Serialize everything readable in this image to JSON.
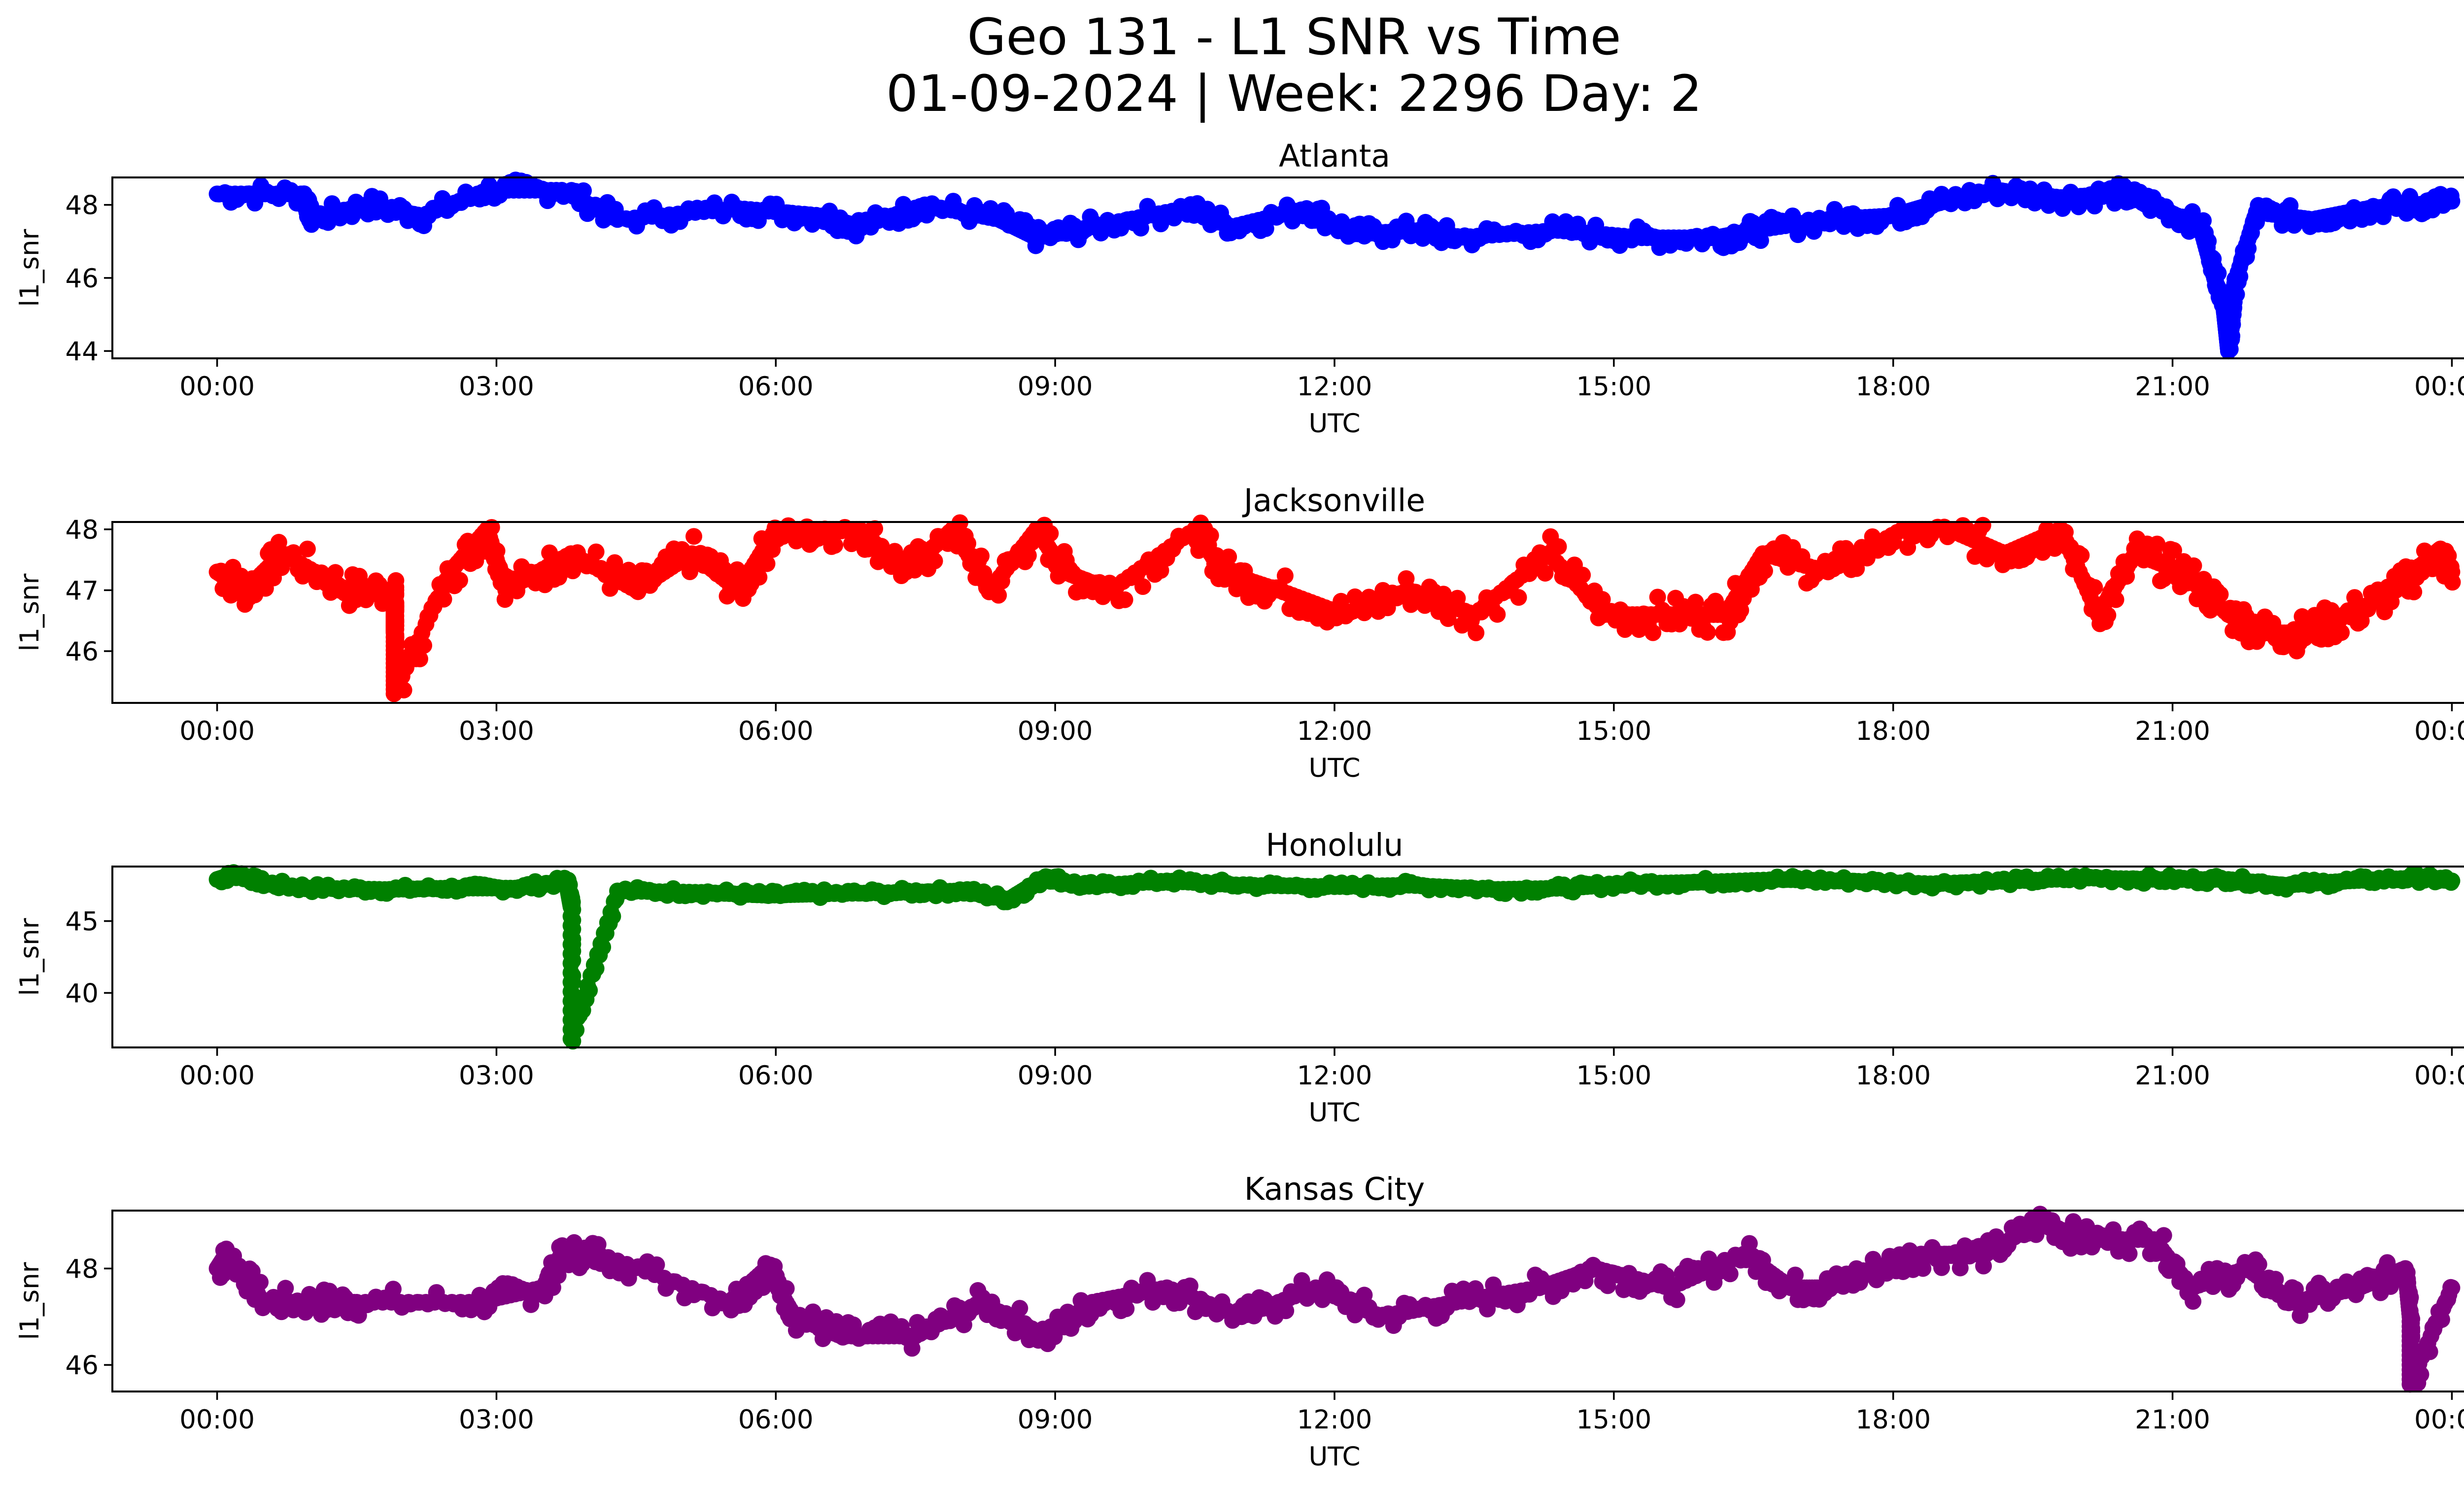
{
  "figure": {
    "title_line1": "Geo 131 - L1 SNR vs Time",
    "title_line2": "01-09-2024 | Week: 2296 Day: 2"
  },
  "chart_data": [
    {
      "type": "scatter",
      "title": "Atlanta",
      "xlabel": "UTC",
      "ylabel": "l1_snr",
      "color": "#0000ff",
      "xlim": [
        -1.125,
        25.125
      ],
      "ylim": [
        43.8,
        48.75
      ],
      "xticks": [
        0,
        3,
        6,
        9,
        12,
        15,
        18,
        21,
        24
      ],
      "xtick_labels": [
        "00:00",
        "03:00",
        "06:00",
        "09:00",
        "12:00",
        "15:00",
        "18:00",
        "21:00",
        "00:00"
      ],
      "yticks": [
        44,
        46,
        48
      ],
      "ytick_labels": [
        "44",
        "46",
        "48"
      ],
      "series": [
        {
          "values": [
            [
              0,
              48.3
            ],
            [
              0.9,
              48.3
            ],
            [
              1.0,
              47.6
            ],
            [
              1.6,
              48.0
            ],
            [
              2.2,
              47.7
            ],
            [
              2.9,
              48.4
            ],
            [
              3.7,
              48.4
            ],
            [
              4.3,
              47.6
            ],
            [
              5.6,
              47.9
            ],
            [
              6.5,
              47.7
            ],
            [
              6.9,
              47.4
            ],
            [
              7.6,
              48.0
            ],
            [
              8.4,
              47.6
            ],
            [
              8.8,
              47.1
            ],
            [
              9.4,
              47.4
            ],
            [
              10.4,
              47.9
            ],
            [
              10.9,
              47.4
            ],
            [
              11.7,
              47.9
            ],
            [
              12.2,
              47.2
            ],
            [
              12.9,
              47.3
            ],
            [
              13.3,
              47.1
            ],
            [
              14.4,
              47.3
            ],
            [
              15.3,
              47.1
            ],
            [
              16.1,
              47.1
            ],
            [
              16.5,
              47.3
            ],
            [
              17.3,
              47.6
            ],
            [
              18.0,
              47.7
            ],
            [
              18.4,
              48.0
            ],
            [
              19.1,
              48.4
            ],
            [
              19.8,
              48.2
            ],
            [
              20.4,
              48.3
            ],
            [
              20.8,
              48.0
            ],
            [
              21.3,
              47.4
            ],
            [
              21.45,
              46.0
            ],
            [
              21.55,
              45.2
            ],
            [
              21.6,
              44.0
            ],
            [
              21.65,
              45.7
            ],
            [
              21.9,
              47.8
            ],
            [
              22.5,
              47.6
            ],
            [
              23.1,
              47.9
            ],
            [
              23.6,
              48.0
            ],
            [
              24.0,
              48.1
            ]
          ]
        }
      ]
    },
    {
      "type": "scatter",
      "title": "Jacksonville",
      "xlabel": "UTC",
      "ylabel": "l1_snr",
      "color": "#ff0000",
      "xlim": [
        -1.125,
        25.125
      ],
      "ylim": [
        45.15,
        48.12
      ],
      "xticks": [
        0,
        3,
        6,
        9,
        12,
        15,
        18,
        21,
        24
      ],
      "xtick_labels": [
        "00:00",
        "03:00",
        "06:00",
        "09:00",
        "12:00",
        "15:00",
        "18:00",
        "21:00",
        "00:00"
      ],
      "yticks": [
        46,
        47,
        48
      ],
      "ytick_labels": [
        "46",
        "47",
        "48"
      ],
      "series": [
        {
          "values": [
            [
              0,
              47.3
            ],
            [
              0.3,
              47.0
            ],
            [
              0.7,
              47.6
            ],
            [
              1.4,
              47.0
            ],
            [
              1.9,
              47.0
            ],
            [
              1.9,
              46.6
            ],
            [
              1.9,
              46.3
            ],
            [
              1.9,
              45.3
            ],
            [
              2.5,
              47.3
            ],
            [
              2.9,
              48.0
            ],
            [
              3.1,
              47.0
            ],
            [
              3.8,
              47.6
            ],
            [
              4.5,
              47.0
            ],
            [
              5.1,
              47.6
            ],
            [
              5.6,
              47.0
            ],
            [
              6.0,
              48.0
            ],
            [
              6.4,
              48.0
            ],
            [
              6.9,
              48.0
            ],
            [
              7.4,
              47.3
            ],
            [
              7.9,
              48.0
            ],
            [
              8.3,
              47.0
            ],
            [
              8.8,
              48.0
            ],
            [
              9.1,
              47.3
            ],
            [
              9.6,
              47.0
            ],
            [
              10.5,
              48.0
            ],
            [
              10.8,
              47.3
            ],
            [
              11.4,
              47.0
            ],
            [
              12.1,
              46.6
            ],
            [
              12.8,
              47.0
            ],
            [
              13.5,
              46.6
            ],
            [
              14.3,
              47.6
            ],
            [
              14.9,
              46.6
            ],
            [
              15.6,
              46.6
            ],
            [
              16.2,
              46.6
            ],
            [
              16.6,
              47.6
            ],
            [
              17.3,
              47.3
            ],
            [
              18.1,
              48.0
            ],
            [
              18.6,
              48.0
            ],
            [
              19.2,
              47.6
            ],
            [
              19.8,
              48.0
            ],
            [
              20.2,
              46.6
            ],
            [
              20.6,
              47.6
            ],
            [
              21.1,
              47.3
            ],
            [
              21.6,
              46.6
            ],
            [
              22.0,
              46.3
            ],
            [
              22.4,
              46.3
            ],
            [
              22.9,
              46.6
            ],
            [
              23.4,
              47.0
            ],
            [
              23.8,
              47.6
            ],
            [
              24.0,
              47.3
            ]
          ]
        }
      ]
    },
    {
      "type": "scatter",
      "title": "Honolulu",
      "xlabel": "UTC",
      "ylabel": "l1_snr",
      "color": "#008000",
      "xlim": [
        -1.125,
        25.125
      ],
      "ylim": [
        36.2,
        48.8
      ],
      "xticks": [
        0,
        3,
        6,
        9,
        12,
        15,
        18,
        21,
        24
      ],
      "xtick_labels": [
        "00:00",
        "03:00",
        "06:00",
        "09:00",
        "12:00",
        "15:00",
        "18:00",
        "21:00",
        "00:00"
      ],
      "yticks": [
        40,
        45
      ],
      "ytick_labels": [
        "40",
        "45"
      ],
      "series": [
        {
          "values": [
            [
              0,
              47.9
            ],
            [
              0.2,
              48.3
            ],
            [
              0.5,
              47.6
            ],
            [
              1.0,
              47.3
            ],
            [
              1.8,
              47.2
            ],
            [
              2.5,
              47.3
            ],
            [
              3.2,
              47.3
            ],
            [
              3.75,
              47.8
            ],
            [
              3.8,
              46.0
            ],
            [
              3.8,
              36.8
            ],
            [
              4.3,
              47.1
            ],
            [
              5.2,
              47.0
            ],
            [
              5.9,
              46.8
            ],
            [
              6.5,
              46.9
            ],
            [
              7.4,
              47.0
            ],
            [
              8.0,
              47.1
            ],
            [
              8.5,
              46.5
            ],
            [
              8.9,
              48.1
            ],
            [
              9.3,
              47.4
            ],
            [
              10.2,
              47.8
            ],
            [
              11.0,
              47.5
            ],
            [
              12.0,
              47.4
            ],
            [
              12.8,
              47.5
            ],
            [
              13.7,
              47.2
            ],
            [
              14.5,
              47.3
            ],
            [
              15.1,
              47.6
            ],
            [
              15.9,
              47.7
            ],
            [
              16.8,
              47.9
            ],
            [
              17.5,
              47.8
            ],
            [
              18.4,
              47.6
            ],
            [
              19.3,
              47.8
            ],
            [
              20.1,
              48.0
            ],
            [
              20.9,
              47.9
            ],
            [
              21.6,
              47.9
            ],
            [
              22.2,
              47.5
            ],
            [
              22.9,
              47.8
            ],
            [
              23.6,
              48.0
            ],
            [
              24.0,
              47.8
            ]
          ]
        }
      ]
    },
    {
      "type": "scatter",
      "title": "Kansas City",
      "xlabel": "UTC",
      "ylabel": "l1_snr",
      "color": "#800080",
      "xlim": [
        -1.125,
        25.125
      ],
      "ylim": [
        45.45,
        49.2
      ],
      "xticks": [
        0,
        3,
        6,
        9,
        12,
        15,
        18,
        21,
        24
      ],
      "xtick_labels": [
        "00:00",
        "03:00",
        "06:00",
        "09:00",
        "12:00",
        "15:00",
        "18:00",
        "21:00",
        "00:00"
      ],
      "yticks": [
        46,
        48
      ],
      "ytick_labels": [
        "46",
        "48"
      ],
      "series": [
        {
          "values": [
            [
              0,
              48.0
            ],
            [
              0.1,
              48.3
            ],
            [
              0.5,
              47.3
            ],
            [
              1.1,
              47.3
            ],
            [
              1.5,
              47.3
            ],
            [
              2.8,
              47.3
            ],
            [
              3.5,
              47.6
            ],
            [
              3.7,
              48.3
            ],
            [
              4.1,
              48.3
            ],
            [
              5.5,
              47.3
            ],
            [
              5.9,
              48.0
            ],
            [
              6.2,
              47.0
            ],
            [
              6.7,
              46.6
            ],
            [
              7.5,
              46.6
            ],
            [
              8.2,
              47.3
            ],
            [
              8.9,
              46.6
            ],
            [
              9.4,
              47.3
            ],
            [
              10.2,
              47.6
            ],
            [
              11.0,
              47.0
            ],
            [
              11.8,
              47.6
            ],
            [
              12.5,
              47.0
            ],
            [
              13.3,
              47.3
            ],
            [
              14.2,
              47.6
            ],
            [
              14.8,
              48.0
            ],
            [
              15.6,
              47.6
            ],
            [
              16.4,
              48.3
            ],
            [
              16.9,
              47.6
            ],
            [
              17.3,
              47.6
            ],
            [
              17.8,
              48.0
            ],
            [
              18.3,
              48.3
            ],
            [
              19.0,
              48.3
            ],
            [
              19.6,
              49.0
            ],
            [
              20.0,
              48.6
            ],
            [
              20.8,
              48.6
            ],
            [
              21.2,
              47.6
            ],
            [
              21.8,
              48.0
            ],
            [
              22.3,
              47.3
            ],
            [
              23.0,
              47.6
            ],
            [
              23.5,
              48.0
            ],
            [
              23.55,
              47.0
            ],
            [
              23.55,
              45.6
            ],
            [
              24.0,
              47.6
            ]
          ]
        }
      ]
    }
  ]
}
